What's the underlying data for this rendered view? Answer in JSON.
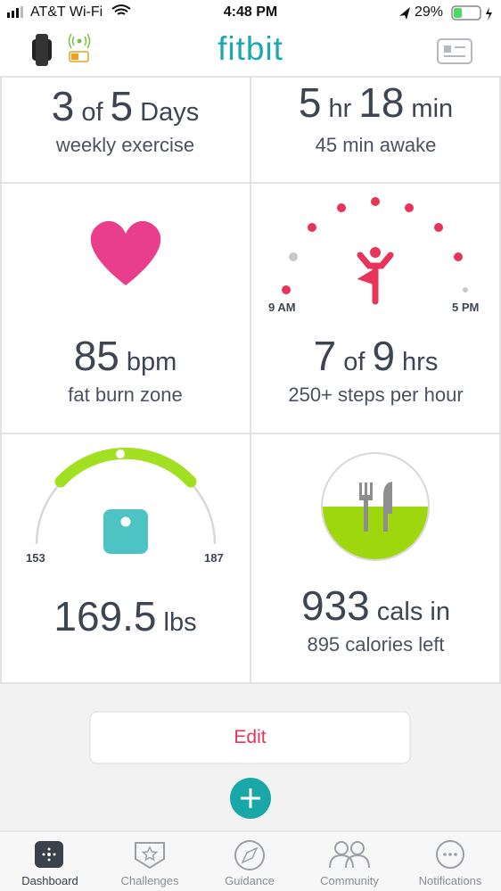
{
  "status_bar": {
    "carrier": "AT&T Wi-Fi",
    "time": "4:48 PM",
    "battery": "29%"
  },
  "header": {
    "title": "fitbit"
  },
  "tiles": [
    {
      "headline": [
        "3",
        "of",
        "5",
        "Days"
      ],
      "subtitle": "weekly exercise"
    },
    {
      "headline": [
        "5",
        "hr",
        "18",
        "min"
      ],
      "subtitle": "45 min awake"
    },
    {
      "headline": [
        "85",
        "bpm"
      ],
      "subtitle": "fat burn zone"
    },
    {
      "headline": [
        "7",
        "of",
        "9",
        "hrs"
      ],
      "subtitle": "250+ steps per hour",
      "axis_labels": [
        "9 AM",
        "5 PM"
      ]
    },
    {
      "headline": [
        "169.5",
        "lbs"
      ],
      "axis_labels": [
        "153",
        "187"
      ]
    },
    {
      "headline": [
        "933",
        "cals in"
      ],
      "subtitle": "895 calories left"
    }
  ],
  "edit_button": "Edit",
  "nav": [
    "Dashboard",
    "Challenges",
    "Guidance",
    "Community",
    "Notifications"
  ]
}
